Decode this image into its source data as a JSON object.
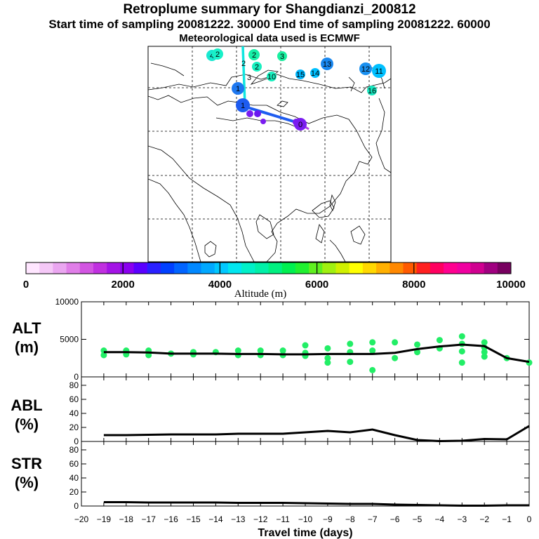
{
  "header": {
    "title": "Retroplume summary for Shangdianzi_200812",
    "sampling_line": "Start time of sampling 20081222. 30000     End time of sampling 20081222. 60000",
    "met_line": "Meteorological data used is ECMWF"
  },
  "colorbar": {
    "label": "Altitude (m)",
    "ticks": [
      "0",
      "2000",
      "4000",
      "6000",
      "8000",
      "10000"
    ],
    "colors": [
      "#ffe6ff",
      "#f5c8f7",
      "#eaa6f0",
      "#e07ee8",
      "#d255e2",
      "#c030e0",
      "#a414e6",
      "#8a00f0",
      "#5a00ff",
      "#2a20ff",
      "#0040ff",
      "#0064ff",
      "#0088ff",
      "#00a8ff",
      "#00c8ff",
      "#00e6f0",
      "#00f0c8",
      "#00f0a8",
      "#00f080",
      "#00f050",
      "#20f030",
      "#60f020",
      "#a0f010",
      "#d0f000",
      "#ffff00",
      "#ffd800",
      "#ffb000",
      "#ff8800",
      "#ff5a00",
      "#ff2020",
      "#ff0060",
      "#ff0090",
      "#f000a0",
      "#d00090",
      "#a00080",
      "#780060"
    ]
  },
  "map": {
    "clusters": [
      {
        "label": "0",
        "color": "#7a1cf0",
        "r": 9
      },
      {
        "label": "1",
        "color": "#1e5cf0",
        "r": 10
      },
      {
        "label": "1",
        "color": "#1e78f0",
        "r": 9
      },
      {
        "label": "2",
        "color": "#18f0a8",
        "r": 8
      },
      {
        "label": "2",
        "color": "#18f0c0",
        "r": 7
      },
      {
        "label": "2",
        "color": "#18f0b0",
        "r": 0
      },
      {
        "label": "3",
        "color": "#18f0a0",
        "r": 7
      },
      {
        "label": "3",
        "color": "#18e8c8",
        "r": 0
      },
      {
        "label": "4",
        "color": "#18e8d0",
        "r": 8
      },
      {
        "label": "2",
        "color": "#18f0c8",
        "r": 8
      },
      {
        "label": "10",
        "color": "#18f0c0",
        "r": 7
      },
      {
        "label": "15",
        "color": "#00b8ff",
        "r": 7
      },
      {
        "label": "14",
        "color": "#00c0ff",
        "r": 7
      },
      {
        "label": "13",
        "color": "#1a88f0",
        "r": 9
      },
      {
        "label": "12",
        "color": "#1a90f0",
        "r": 9
      },
      {
        "label": "11",
        "color": "#00c0ff",
        "r": 10
      },
      {
        "label": "16",
        "color": "#18e8c0",
        "r": 7
      }
    ]
  },
  "chart_data": [
    {
      "type": "scatter+line",
      "panel_label": "ALT",
      "unit_label": "(m)",
      "ylim": [
        0,
        10000
      ],
      "yticks": [
        "0",
        "5000",
        "10000"
      ],
      "xlim": [
        -20,
        0
      ],
      "x": [
        -19,
        -18,
        -17,
        -16,
        -15,
        -14,
        -13,
        -12,
        -11,
        -10,
        -9,
        -8,
        -7,
        -6,
        -5,
        -4,
        -3,
        -2,
        -1,
        0
      ],
      "mean_altitude": [
        3300,
        3300,
        3250,
        3100,
        3100,
        3100,
        3050,
        3050,
        3000,
        3000,
        3050,
        3050,
        3050,
        3200,
        3700,
        4050,
        4300,
        4100,
        2500,
        2000
      ],
      "points": [
        {
          "x": -19,
          "y": 3500
        },
        {
          "x": -19,
          "y": 2900
        },
        {
          "x": -18,
          "y": 3500
        },
        {
          "x": -18,
          "y": 3000
        },
        {
          "x": -17,
          "y": 3500
        },
        {
          "x": -17,
          "y": 2900
        },
        {
          "x": -16,
          "y": 3100
        },
        {
          "x": -15,
          "y": 3300
        },
        {
          "x": -15,
          "y": 3000
        },
        {
          "x": -14,
          "y": 3300
        },
        {
          "x": -13,
          "y": 3500
        },
        {
          "x": -13,
          "y": 2900
        },
        {
          "x": -12,
          "y": 3500
        },
        {
          "x": -12,
          "y": 2900
        },
        {
          "x": -11,
          "y": 3500
        },
        {
          "x": -11,
          "y": 2900
        },
        {
          "x": -10,
          "y": 4200
        },
        {
          "x": -10,
          "y": 3200
        },
        {
          "x": -10,
          "y": 2800
        },
        {
          "x": -9,
          "y": 3800
        },
        {
          "x": -9,
          "y": 2500
        },
        {
          "x": -9,
          "y": 1900
        },
        {
          "x": -8,
          "y": 4400
        },
        {
          "x": -8,
          "y": 3300
        },
        {
          "x": -8,
          "y": 2000
        },
        {
          "x": -7,
          "y": 4600
        },
        {
          "x": -7,
          "y": 3500
        },
        {
          "x": -7,
          "y": 900
        },
        {
          "x": -6,
          "y": 4600
        },
        {
          "x": -6,
          "y": 2500
        },
        {
          "x": -5,
          "y": 4300
        },
        {
          "x": -5,
          "y": 3300
        },
        {
          "x": -4,
          "y": 4900
        },
        {
          "x": -4,
          "y": 3800
        },
        {
          "x": -3,
          "y": 5400
        },
        {
          "x": -3,
          "y": 4400
        },
        {
          "x": -3,
          "y": 3400
        },
        {
          "x": -3,
          "y": 1900
        },
        {
          "x": -2,
          "y": 4600
        },
        {
          "x": -2,
          "y": 3900
        },
        {
          "x": -2,
          "y": 3300
        },
        {
          "x": -2,
          "y": 2700
        },
        {
          "x": -1,
          "y": 2500
        },
        {
          "x": 0,
          "y": 1900
        }
      ]
    },
    {
      "type": "line",
      "panel_label": "ABL",
      "unit_label": "(%)",
      "ylim": [
        0,
        90
      ],
      "yticks": [
        "0",
        "20",
        "40",
        "60",
        "80"
      ],
      "xlim": [
        -20,
        0
      ],
      "x": [
        -19,
        -18,
        -17,
        -16,
        -15,
        -14,
        -13,
        -12,
        -11,
        -10,
        -9,
        -8,
        -7,
        -6,
        -5,
        -4,
        -3,
        -2,
        -1,
        0
      ],
      "values": [
        9,
        9,
        9.5,
        10,
        10,
        10,
        11,
        11,
        11,
        13,
        15,
        13,
        17,
        9,
        2,
        0.5,
        1,
        3.5,
        3,
        22
      ]
    },
    {
      "type": "line",
      "panel_label": "STR",
      "unit_label": "(%)",
      "ylim": [
        0,
        90
      ],
      "yticks": [
        "0",
        "20",
        "40",
        "60",
        "80"
      ],
      "xlim": [
        -20,
        0
      ],
      "x": [
        -19,
        -18,
        -17,
        -16,
        -15,
        -14,
        -13,
        -12,
        -11,
        -10,
        -9,
        -8,
        -7,
        -6,
        -5,
        -4,
        -3,
        -2,
        -1,
        0
      ],
      "values": [
        5.5,
        5.5,
        5,
        5,
        5,
        5,
        4.5,
        4.5,
        4.5,
        4,
        3.5,
        3,
        3,
        2,
        1.5,
        1,
        0.5,
        0.5,
        1,
        1
      ]
    },
    {
      "type": "axis",
      "xlabel": "Travel time (days)",
      "xticks": [
        "−20",
        "−19",
        "−18",
        "−17",
        "−16",
        "−15",
        "−14",
        "−13",
        "−12",
        "−11",
        "−10",
        "−9",
        "−8",
        "−7",
        "−6",
        "−5",
        "−4",
        "−3",
        "−2",
        "−1",
        "0"
      ]
    }
  ]
}
